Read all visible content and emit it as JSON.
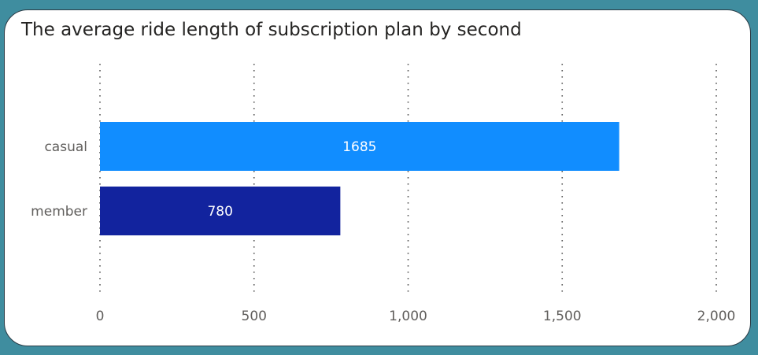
{
  "chart_data": {
    "type": "bar",
    "orientation": "horizontal",
    "title": "The average ride length of subscription plan by second",
    "categories": [
      "casual",
      "member"
    ],
    "values": [
      1685,
      780
    ],
    "data_labels": [
      "1685",
      "780"
    ],
    "colors": [
      "#118dff",
      "#12239e"
    ],
    "xlim": [
      0,
      2000
    ],
    "x_ticks": [
      0,
      500,
      1000,
      1500,
      2000
    ],
    "x_tick_labels": [
      "0",
      "500",
      "1,000",
      "1,500",
      "2,000"
    ],
    "grid": "vertical-dotted",
    "xlabel": "",
    "ylabel": ""
  }
}
